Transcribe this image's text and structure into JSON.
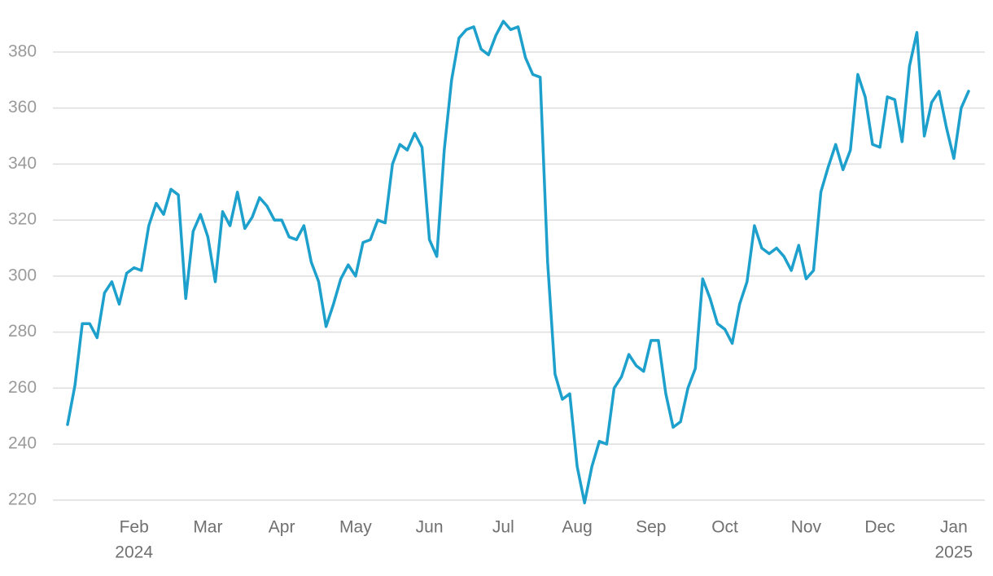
{
  "chart_data": {
    "type": "line",
    "categories": [
      null,
      null,
      null,
      null,
      null,
      null,
      null,
      null,
      null,
      "Feb",
      null,
      null,
      null,
      null,
      null,
      null,
      null,
      null,
      null,
      "Mar",
      null,
      null,
      null,
      null,
      null,
      null,
      null,
      null,
      null,
      "Apr",
      null,
      null,
      null,
      null,
      null,
      null,
      null,
      null,
      null,
      "May",
      null,
      null,
      null,
      null,
      null,
      null,
      null,
      null,
      null,
      "Jun",
      null,
      null,
      null,
      null,
      null,
      null,
      null,
      null,
      null,
      "Jul",
      null,
      null,
      null,
      null,
      null,
      null,
      null,
      null,
      null,
      "Aug",
      null,
      null,
      null,
      null,
      null,
      null,
      null,
      null,
      null,
      "Sep",
      null,
      null,
      null,
      null,
      null,
      null,
      null,
      null,
      null,
      "Oct",
      null,
      null,
      null,
      null,
      null,
      null,
      null,
      null,
      null,
      null,
      "Nov",
      null,
      null,
      null,
      null,
      null,
      null,
      null,
      null,
      null,
      "Dec",
      null,
      null,
      null,
      null,
      null,
      null,
      null,
      null,
      null,
      "Jan",
      null,
      null
    ],
    "category_years": [
      null,
      null,
      null,
      null,
      null,
      null,
      null,
      null,
      null,
      "2024",
      null,
      null,
      null,
      null,
      null,
      null,
      null,
      null,
      null,
      null,
      null,
      null,
      null,
      null,
      null,
      null,
      null,
      null,
      null,
      null,
      null,
      null,
      null,
      null,
      null,
      null,
      null,
      null,
      null,
      null,
      null,
      null,
      null,
      null,
      null,
      null,
      null,
      null,
      null,
      null,
      null,
      null,
      null,
      null,
      null,
      null,
      null,
      null,
      null,
      null,
      null,
      null,
      null,
      null,
      null,
      null,
      null,
      null,
      null,
      null,
      null,
      null,
      null,
      null,
      null,
      null,
      null,
      null,
      null,
      null,
      null,
      null,
      null,
      null,
      null,
      null,
      null,
      null,
      null,
      null,
      null,
      null,
      null,
      null,
      null,
      null,
      null,
      null,
      null,
      null,
      null,
      null,
      null,
      null,
      null,
      null,
      null,
      null,
      null,
      null,
      null,
      null,
      null,
      null,
      null,
      null,
      null,
      null,
      null,
      null,
      "2025",
      null,
      null
    ],
    "series": [
      {
        "color": "#1ea0cc",
        "values": [
          247,
          261,
          283,
          283,
          278,
          294,
          298,
          290,
          301,
          303,
          302,
          318,
          326,
          322,
          331,
          329,
          292,
          316,
          322,
          314,
          298,
          323,
          318,
          330,
          317,
          321,
          328,
          325,
          320,
          320,
          314,
          313,
          318,
          305,
          298,
          282,
          290,
          299,
          304,
          300,
          312,
          313,
          320,
          319,
          340,
          347,
          345,
          351,
          346,
          313,
          307,
          345,
          370,
          385,
          388,
          389,
          381,
          379,
          386,
          391,
          388,
          389,
          378,
          372,
          371,
          305,
          265,
          256,
          258,
          232,
          219,
          232,
          241,
          240,
          260,
          264,
          272,
          268,
          266,
          277,
          277,
          258,
          246,
          248,
          260,
          267,
          299,
          292,
          283,
          281,
          276,
          290,
          298,
          318,
          310,
          308,
          310,
          307,
          302,
          311,
          299,
          302,
          330,
          339,
          347,
          338,
          345,
          372,
          364,
          347,
          346,
          364,
          363,
          348,
          375,
          387,
          350,
          362,
          366,
          353,
          342,
          360,
          366
        ]
      }
    ],
    "ylim": [
      214,
      398
    ],
    "yticks": [
      220,
      240,
      260,
      280,
      300,
      320,
      340,
      360,
      380
    ],
    "grid": true
  }
}
